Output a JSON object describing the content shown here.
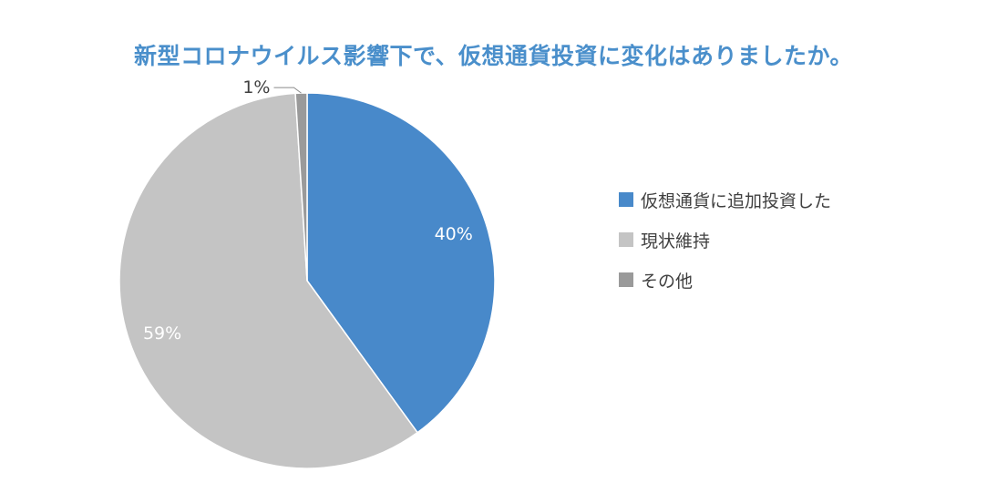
{
  "chart_data": {
    "type": "pie",
    "title": "新型コロナウイルス影響下で、仮想通貨投資に変化はありましたか。",
    "slices": [
      {
        "label": "仮想通貨に追加投資した",
        "value": 40,
        "display": "40%",
        "color": "#4889ca"
      },
      {
        "label": "現状維持",
        "value": 59,
        "display": "59%",
        "color": "#c4c4c4"
      },
      {
        "label": "その他",
        "value": 1,
        "display": "1%",
        "color": "#9a9a9a"
      }
    ],
    "legend_position": "right"
  }
}
